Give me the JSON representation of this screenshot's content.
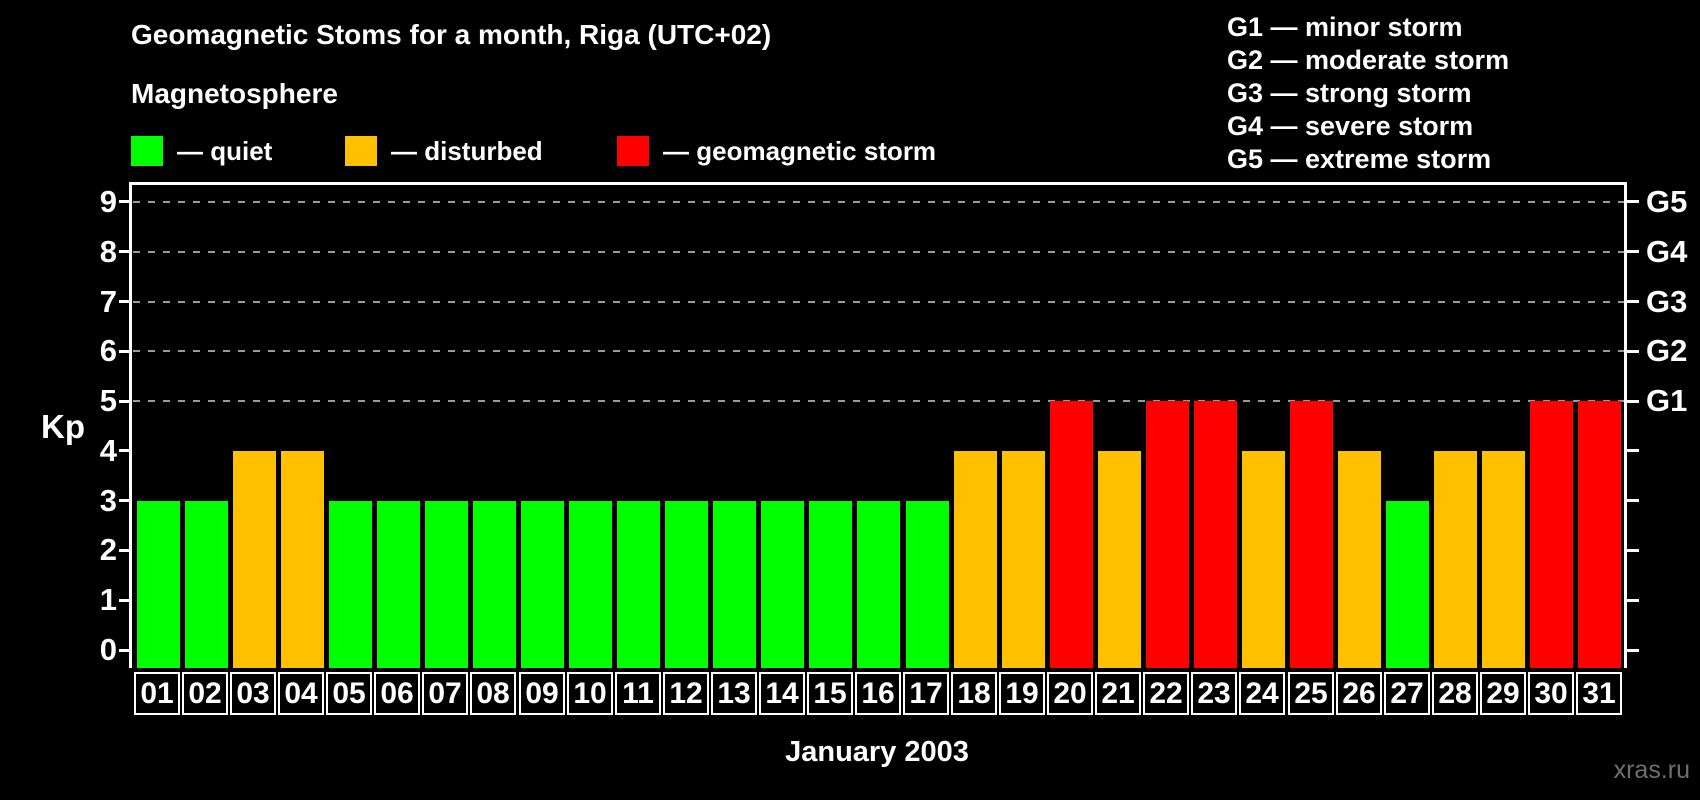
{
  "header": {
    "title": "Geomagnetic Stoms for a month, Riga (UTC+02)",
    "legend_title": "Magnetosphere",
    "legend": [
      {
        "status": "quiet",
        "color": "#00ff00",
        "label": "— quiet"
      },
      {
        "status": "disturbed",
        "color": "#ffc000",
        "label": "— disturbed"
      },
      {
        "status": "storm",
        "color": "#ff0000",
        "label": "— geomagnetic storm"
      }
    ],
    "g_scale_legend": [
      {
        "code": "G1",
        "text": "G1 — minor storm"
      },
      {
        "code": "G2",
        "text": "G2 — moderate storm"
      },
      {
        "code": "G3",
        "text": "G3 — strong storm"
      },
      {
        "code": "G4",
        "text": "G4 — severe storm"
      },
      {
        "code": "G5",
        "text": "G5 — extreme storm"
      }
    ]
  },
  "chart_data": {
    "type": "bar",
    "title": "Geomagnetic Stoms for a month, Riga (UTC+02)",
    "xlabel": "January 2003",
    "ylabel": "Kp",
    "ylim": [
      0,
      9
    ],
    "yticks": [
      0,
      1,
      2,
      3,
      4,
      5,
      6,
      7,
      8,
      9
    ],
    "gridlines_at_kp": [
      5,
      6,
      7,
      8,
      9
    ],
    "grid": "dashed horizontal lines at Kp 5-9 only",
    "legend_position": "top",
    "right_axis": [
      {
        "kp": 5,
        "label": "G1"
      },
      {
        "kp": 6,
        "label": "G2"
      },
      {
        "kp": 7,
        "label": "G3"
      },
      {
        "kp": 8,
        "label": "G4"
      },
      {
        "kp": 9,
        "label": "G5"
      }
    ],
    "categories": [
      "01",
      "02",
      "03",
      "04",
      "05",
      "06",
      "07",
      "08",
      "09",
      "10",
      "11",
      "12",
      "13",
      "14",
      "15",
      "16",
      "17",
      "18",
      "19",
      "20",
      "21",
      "22",
      "23",
      "24",
      "25",
      "26",
      "27",
      "28",
      "29",
      "30",
      "31"
    ],
    "values": [
      3,
      3,
      4,
      4,
      3,
      3,
      3,
      3,
      3,
      3,
      3,
      3,
      3,
      3,
      3,
      3,
      3,
      4,
      4,
      5,
      4,
      5,
      5,
      4,
      5,
      4,
      3,
      4,
      4,
      5,
      5
    ],
    "statuses": [
      "quiet",
      "quiet",
      "disturbed",
      "disturbed",
      "quiet",
      "quiet",
      "quiet",
      "quiet",
      "quiet",
      "quiet",
      "quiet",
      "quiet",
      "quiet",
      "quiet",
      "quiet",
      "quiet",
      "quiet",
      "disturbed",
      "disturbed",
      "storm",
      "disturbed",
      "storm",
      "storm",
      "disturbed",
      "storm",
      "disturbed",
      "quiet",
      "disturbed",
      "disturbed",
      "storm",
      "storm"
    ],
    "status_colors": {
      "quiet": "#00ff00",
      "disturbed": "#ffc000",
      "storm": "#ff0000"
    }
  },
  "footer": {
    "xaxis_title": "January 2003",
    "watermark": "xras.ru"
  }
}
